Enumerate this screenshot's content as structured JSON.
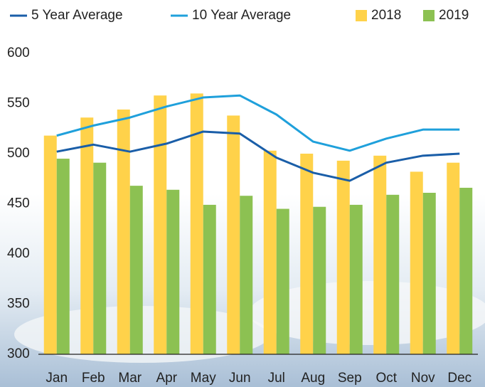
{
  "chart_data": {
    "type": "bar",
    "categories": [
      "Jan",
      "Feb",
      "Mar",
      "Apr",
      "May",
      "Jun",
      "Jul",
      "Aug",
      "Sep",
      "Oct",
      "Nov",
      "Dec"
    ],
    "series": [
      {
        "name": "5 Year Average",
        "type": "line",
        "color": "#1a5ea8",
        "values": [
          502,
          509,
          502,
          510,
          522,
          520,
          496,
          481,
          473,
          491,
          498,
          500
        ]
      },
      {
        "name": "10 Year Average",
        "type": "line",
        "color": "#1fa0db",
        "values": [
          518,
          528,
          536,
          547,
          556,
          558,
          539,
          512,
          503,
          515,
          524,
          524
        ]
      },
      {
        "name": "2018",
        "type": "bar",
        "color": "#ffd24a",
        "values": [
          518,
          536,
          544,
          558,
          560,
          538,
          503,
          500,
          493,
          498,
          482,
          491
        ]
      },
      {
        "name": "2019",
        "type": "bar",
        "color": "#8cc152",
        "values": [
          495,
          491,
          468,
          464,
          449,
          458,
          445,
          447,
          449,
          459,
          461,
          466
        ]
      }
    ],
    "ylim": [
      300,
      600
    ],
    "yticks": [
      300,
      350,
      400,
      450,
      500,
      550,
      600
    ]
  }
}
